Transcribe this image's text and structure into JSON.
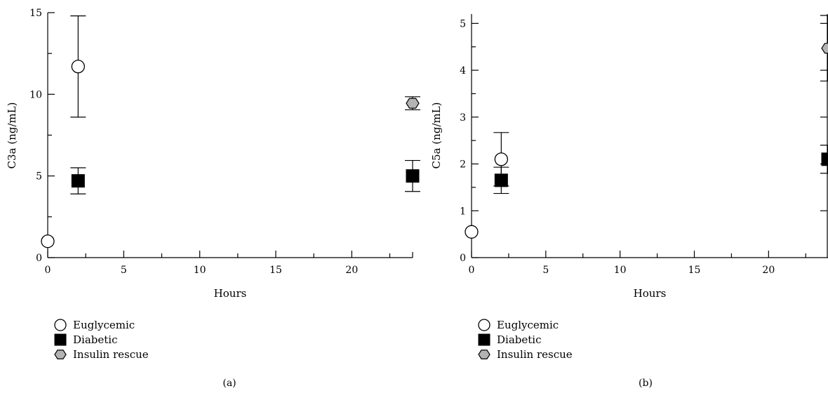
{
  "chart_data": [
    {
      "type": "scatter",
      "panel_label": "(a)",
      "xlabel": "Hours",
      "ylabel": "C3a (ng/mL)",
      "xlim": [
        0,
        24
      ],
      "ylim": [
        0,
        15
      ],
      "x_ticks": [
        0,
        5,
        10,
        15,
        20
      ],
      "y_ticks": [
        0,
        5,
        10,
        15
      ],
      "legend_position": "bottom-left",
      "series": [
        {
          "name": "Euglycemic",
          "marker": "circle",
          "color": "#ffffff",
          "points": [
            {
              "x": 0,
              "y": 1.0,
              "err": 0
            },
            {
              "x": 2,
              "y": 11.7,
              "err": 3.1
            }
          ]
        },
        {
          "name": "Diabetic",
          "marker": "square",
          "color": "#000000",
          "points": [
            {
              "x": 2,
              "y": 4.7,
              "err": 0.8
            },
            {
              "x": 24,
              "y": 5.0,
              "err": 0.95
            }
          ]
        },
        {
          "name": "Insulin rescue",
          "marker": "hexagon",
          "color": "#b3b3b3",
          "points": [
            {
              "x": 24,
              "y": 9.45,
              "err": 0.4
            }
          ]
        }
      ]
    },
    {
      "type": "scatter",
      "panel_label": "(b)",
      "xlabel": "Hours",
      "ylabel": "C5a (ng/mL)",
      "xlim": [
        0,
        24
      ],
      "ylim": [
        0,
        5.2
      ],
      "x_ticks": [
        0,
        5,
        10,
        15,
        20
      ],
      "y_ticks": [
        0,
        1,
        2,
        3,
        4,
        5
      ],
      "legend_position": "bottom-left",
      "series": [
        {
          "name": "Euglycemic",
          "marker": "circle",
          "color": "#ffffff",
          "points": [
            {
              "x": 0,
              "y": 0.55,
              "err": 0
            },
            {
              "x": 2,
              "y": 2.1,
              "err": 0.57
            }
          ]
        },
        {
          "name": "Diabetic",
          "marker": "square",
          "color": "#000000",
          "points": [
            {
              "x": 2,
              "y": 1.65,
              "err": 0.28
            },
            {
              "x": 24,
              "y": 2.1,
              "err": 0.3
            }
          ]
        },
        {
          "name": "Insulin rescue",
          "marker": "hexagon",
          "color": "#b3b3b3",
          "points": [
            {
              "x": 24,
              "y": 4.47,
              "err": 0.7
            }
          ]
        }
      ]
    }
  ]
}
